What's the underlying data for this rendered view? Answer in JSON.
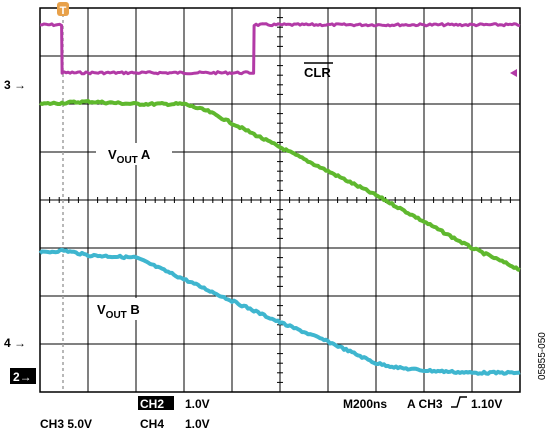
{
  "colors": {
    "ch3_trace": "#b23aa6",
    "vout_a_trace": "#5fb82e",
    "vout_b_trace": "#3fb6cf",
    "grid": "#000000",
    "cursor": "#a0a0a0",
    "trigger_marker": "#e8a14a"
  },
  "annotations": {
    "clr": "CLR",
    "vout_a_main": "V",
    "vout_a_sub": "OUT",
    "vout_a_tail": " A",
    "vout_b_main": "V",
    "vout_b_sub": "OUT",
    "vout_b_tail": " B",
    "trigger_marker": "T"
  },
  "channel_markers": {
    "ch3": "3 →",
    "ch4": "4 →",
    "ch2": "2→"
  },
  "footer": {
    "ch3_scale": "CH3 5.0V",
    "ch2_label": "CH2",
    "ch2_scale": "1.0V",
    "ch4_label": "CH4",
    "ch4_scale": "1.0V",
    "timebase": "M200ns",
    "trigger": "A CH3",
    "trigger_level": "1.10V"
  },
  "figure_id": "05855-050",
  "chart_data": {
    "type": "line",
    "title": "",
    "xlabel": "",
    "ylabel": "",
    "xlim": [
      0,
      10
    ],
    "ylim": [
      0,
      8
    ],
    "grid": true,
    "series": [
      {
        "name": "CLR",
        "x": [
          0,
          0.45,
          0.46,
          4.45,
          4.46,
          10
        ],
        "y": [
          7.65,
          7.65,
          6.65,
          6.65,
          7.65,
          7.65
        ]
      },
      {
        "name": "VOUT A",
        "x": [
          0,
          1.0,
          2.0,
          3.0,
          3.5,
          4.0,
          5.0,
          6.0,
          7.0,
          8.0,
          9.0,
          10.0
        ],
        "y": [
          6.0,
          6.05,
          6.0,
          6.0,
          5.85,
          5.6,
          5.1,
          4.6,
          4.1,
          3.55,
          3.0,
          2.55
        ]
      },
      {
        "name": "VOUT B",
        "x": [
          0,
          0.5,
          1.0,
          2.0,
          3.0,
          4.0,
          5.0,
          6.0,
          7.0,
          7.5,
          8.0,
          9.0,
          10.0
        ],
        "y": [
          2.9,
          2.95,
          2.85,
          2.8,
          2.35,
          1.9,
          1.45,
          1.05,
          0.6,
          0.5,
          0.45,
          0.4,
          0.4
        ]
      }
    ]
  }
}
